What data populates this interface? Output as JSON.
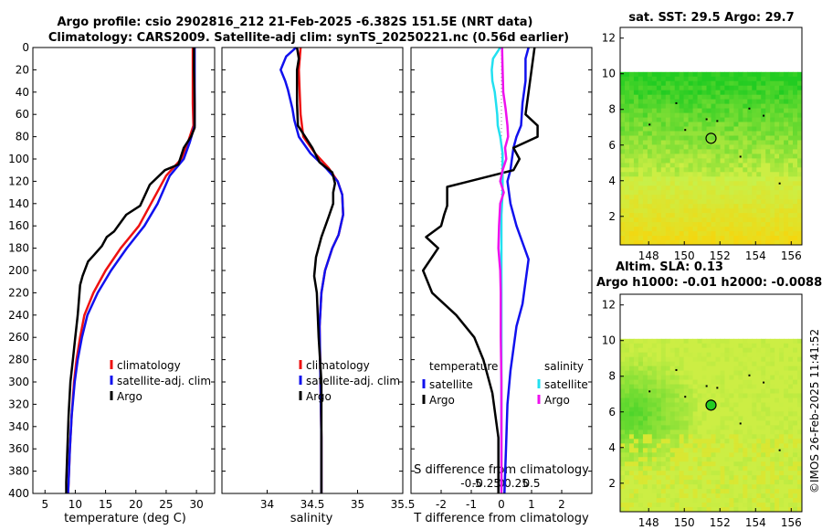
{
  "header": {
    "title_line1": "Argo profile: csio 2902816_212 21-Feb-2025 -6.382S 151.5E (NRT data)",
    "title_line2": "Climatology: CARS2009. Satellite-adj clim: synTS_20250221.nc (0.56d earlier)"
  },
  "timestamp": "©IMOS 26-Feb-2025 11:41:52",
  "colors": {
    "climatology": "#ee1111",
    "satellite": "#1111ee",
    "argo": "#000000",
    "sal_satellite": "#22e0f0",
    "sal_argo": "#ee11ee",
    "map_low": "#ccee44",
    "map_high": "#22cc22",
    "map_hot": "#ffd000"
  },
  "chart_data": [
    {
      "type": "line",
      "id": "temperature",
      "xlabel": "temperature (deg C)",
      "ylabel": "",
      "xlim": [
        3,
        33
      ],
      "ylim": [
        400,
        0
      ],
      "xticks": [
        5,
        10,
        15,
        20,
        25,
        30
      ],
      "yticks": [
        0,
        20,
        40,
        60,
        80,
        100,
        120,
        140,
        160,
        180,
        200,
        220,
        240,
        260,
        280,
        300,
        320,
        340,
        360,
        380,
        400
      ],
      "series": [
        {
          "name": "climatology",
          "color": "#ee1111",
          "points": [
            [
              29.4,
              0
            ],
            [
              29.4,
              20
            ],
            [
              29.4,
              50
            ],
            [
              29.5,
              70
            ],
            [
              28.6,
              85
            ],
            [
              27.5,
              100
            ],
            [
              25,
              115
            ],
            [
              22.5,
              140
            ],
            [
              20.5,
              160
            ],
            [
              17.5,
              180
            ],
            [
              15,
              200
            ],
            [
              13,
              220
            ],
            [
              11.5,
              240
            ],
            [
              10.8,
              260
            ],
            [
              10.2,
              280
            ],
            [
              9.8,
              300
            ],
            [
              9.4,
              330
            ],
            [
              9.1,
              360
            ],
            [
              8.9,
              390
            ],
            [
              8.8,
              400
            ]
          ]
        },
        {
          "name": "satellite-adj. clim",
          "color": "#1111ee",
          "points": [
            [
              29.7,
              0
            ],
            [
              29.7,
              20
            ],
            [
              29.7,
              50
            ],
            [
              29.7,
              70
            ],
            [
              28.9,
              85
            ],
            [
              27.9,
              100
            ],
            [
              25.6,
              115
            ],
            [
              23.6,
              140
            ],
            [
              21.4,
              160
            ],
            [
              18.5,
              180
            ],
            [
              15.9,
              200
            ],
            [
              13.7,
              220
            ],
            [
              12,
              240
            ],
            [
              11.1,
              260
            ],
            [
              10.4,
              280
            ],
            [
              9.9,
              300
            ],
            [
              9.4,
              330
            ],
            [
              9.1,
              360
            ],
            [
              8.9,
              390
            ],
            [
              8.8,
              400
            ]
          ]
        },
        {
          "name": "Argo",
          "color": "#000000",
          "points": [
            [
              29.6,
              0
            ],
            [
              29.6,
              20
            ],
            [
              29.7,
              50
            ],
            [
              29.7,
              72
            ],
            [
              29.1,
              80
            ],
            [
              27.9,
              90
            ],
            [
              27,
              105
            ],
            [
              24.8,
              110
            ],
            [
              22.3,
              123
            ],
            [
              20.7,
              142
            ],
            [
              18.4,
              150
            ],
            [
              16.4,
              165
            ],
            [
              15.2,
              170
            ],
            [
              14.4,
              178
            ],
            [
              13.1,
              186
            ],
            [
              12.1,
              192
            ],
            [
              11.2,
              205
            ],
            [
              10.8,
              213
            ],
            [
              10.4,
              240
            ],
            [
              10,
              260
            ],
            [
              9.6,
              280
            ],
            [
              9.2,
              300
            ],
            [
              8.9,
              330
            ],
            [
              8.7,
              360
            ],
            [
              8.5,
              390
            ],
            [
              8.5,
              400
            ]
          ]
        }
      ],
      "legend": [
        "climatology",
        "satellite-adj. clim",
        "Argo"
      ]
    },
    {
      "type": "line",
      "id": "salinity",
      "xlabel": "salinity",
      "xlim": [
        33.5,
        35.5
      ],
      "ylim": [
        400,
        0
      ],
      "xticks": [
        34,
        34.5,
        35,
        35.5
      ],
      "series": [
        {
          "name": "climatology",
          "color": "#ee1111",
          "points": [
            [
              34.37,
              0
            ],
            [
              34.35,
              20
            ],
            [
              34.36,
              40
            ],
            [
              34.37,
              60
            ],
            [
              34.4,
              80
            ],
            [
              34.53,
              95
            ],
            [
              34.68,
              108
            ],
            [
              34.78,
              120
            ],
            [
              34.83,
              132
            ],
            [
              34.84,
              150
            ],
            [
              34.79,
              168
            ],
            [
              34.72,
              180
            ],
            [
              34.64,
              200
            ],
            [
              34.6,
              220
            ],
            [
              34.58,
              250
            ],
            [
              34.59,
              300
            ],
            [
              34.6,
              350
            ],
            [
              34.6,
              400
            ]
          ]
        },
        {
          "name": "satellite-adj. clim",
          "color": "#1111ee",
          "points": [
            [
              34.32,
              0
            ],
            [
              34.21,
              8
            ],
            [
              34.15,
              20
            ],
            [
              34.2,
              30
            ],
            [
              34.23,
              38
            ],
            [
              34.28,
              55
            ],
            [
              34.3,
              65
            ],
            [
              34.35,
              80
            ],
            [
              34.48,
              95
            ],
            [
              34.65,
              108
            ],
            [
              34.78,
              120
            ],
            [
              34.83,
              132
            ],
            [
              34.84,
              150
            ],
            [
              34.79,
              168
            ],
            [
              34.72,
              180
            ],
            [
              34.64,
              200
            ],
            [
              34.6,
              220
            ],
            [
              34.58,
              250
            ],
            [
              34.59,
              300
            ],
            [
              34.6,
              350
            ],
            [
              34.6,
              400
            ]
          ]
        },
        {
          "name": "Argo",
          "color": "#000000",
          "points": [
            [
              34.33,
              0
            ],
            [
              34.35,
              10
            ],
            [
              34.33,
              20
            ],
            [
              34.33,
              50
            ],
            [
              34.34,
              70
            ],
            [
              34.42,
              80
            ],
            [
              34.5,
              90
            ],
            [
              34.58,
              103
            ],
            [
              34.72,
              112
            ],
            [
              34.75,
              122
            ],
            [
              34.73,
              130
            ],
            [
              34.73,
              140
            ],
            [
              34.68,
              152
            ],
            [
              34.6,
              170
            ],
            [
              34.54,
              188
            ],
            [
              34.52,
              205
            ],
            [
              34.55,
              220
            ],
            [
              34.57,
              260
            ],
            [
              34.6,
              300
            ],
            [
              34.6,
              340
            ],
            [
              34.6,
              400
            ]
          ]
        }
      ],
      "legend": [
        "climatology",
        "satellite-adj. clim",
        "Argo"
      ]
    },
    {
      "type": "line",
      "id": "difference",
      "xlabel": "T difference from climatology",
      "xlabel_top": "S difference from climatology",
      "xlim": [
        -3,
        3
      ],
      "ylim": [
        400,
        0
      ],
      "xticks_T": [
        -2,
        -1,
        0,
        1,
        2
      ],
      "xticks_S_labels": [
        "-0.5",
        "-0.25",
        "0",
        "0.25",
        "0.5"
      ],
      "xticks_S_values": [
        -0.5,
        -0.25,
        0,
        0.25,
        0.5
      ],
      "series": [
        {
          "name": "T satellite",
          "color": "#1111ee",
          "points": [
            [
              0.9,
              0
            ],
            [
              0.8,
              10
            ],
            [
              0.8,
              30
            ],
            [
              0.7,
              50
            ],
            [
              0.65,
              70
            ],
            [
              0.5,
              80
            ],
            [
              0.4,
              90
            ],
            [
              0.35,
              100
            ],
            [
              0.3,
              110
            ],
            [
              0.2,
              120
            ],
            [
              0.3,
              140
            ],
            [
              0.5,
              160
            ],
            [
              0.7,
              175
            ],
            [
              0.9,
              190
            ],
            [
              0.8,
              210
            ],
            [
              0.7,
              230
            ],
            [
              0.5,
              250
            ],
            [
              0.4,
              270
            ],
            [
              0.3,
              290
            ],
            [
              0.2,
              320
            ],
            [
              0.15,
              360
            ],
            [
              0.1,
              400
            ]
          ]
        },
        {
          "name": "T Argo",
          "color": "#000000",
          "points": [
            [
              1.1,
              0
            ],
            [
              1,
              20
            ],
            [
              0.9,
              40
            ],
            [
              0.8,
              60
            ],
            [
              1.2,
              70
            ],
            [
              1.2,
              80
            ],
            [
              0.4,
              90
            ],
            [
              0.6,
              100
            ],
            [
              0.4,
              110
            ],
            [
              -1.8,
              125
            ],
            [
              -1.8,
              142
            ],
            [
              -1.9,
              150
            ],
            [
              -2.0,
              160
            ],
            [
              -2.5,
              170
            ],
            [
              -2.1,
              180
            ],
            [
              -2.6,
              200
            ],
            [
              -2.3,
              220
            ],
            [
              -1.5,
              240
            ],
            [
              -0.9,
              260
            ],
            [
              -0.6,
              280
            ],
            [
              -0.3,
              310
            ],
            [
              -0.1,
              350
            ],
            [
              -0.1,
              400
            ]
          ]
        },
        {
          "name": "S satellite",
          "color": "#22e0f0",
          "points": [
            [
              -0.02,
              0
            ],
            [
              -0.14,
              10
            ],
            [
              -0.16,
              20
            ],
            [
              -0.15,
              30
            ],
            [
              -0.11,
              40
            ],
            [
              -0.09,
              50
            ],
            [
              -0.07,
              60
            ],
            [
              -0.06,
              70
            ],
            [
              -0.02,
              80
            ],
            [
              0.02,
              95
            ],
            [
              0.02,
              110
            ],
            [
              0.02,
              130
            ],
            [
              0,
              150
            ],
            [
              0,
              200
            ],
            [
              0,
              250
            ],
            [
              0,
              300
            ],
            [
              0,
              350
            ],
            [
              0,
              400
            ]
          ]
        },
        {
          "name": "S Argo",
          "color": "#ee11ee",
          "points": [
            [
              0.01,
              0
            ],
            [
              0.02,
              20
            ],
            [
              0.03,
              40
            ],
            [
              0.07,
              55
            ],
            [
              0.1,
              70
            ],
            [
              0.11,
              80
            ],
            [
              0.06,
              90
            ],
            [
              0.08,
              100
            ],
            [
              0.02,
              110
            ],
            [
              -0.02,
              120
            ],
            [
              0.04,
              130
            ],
            [
              -0.02,
              140
            ],
            [
              -0.04,
              160
            ],
            [
              -0.05,
              180
            ],
            [
              -0.02,
              200
            ],
            [
              -0.01,
              220
            ],
            [
              -0.01,
              260
            ],
            [
              0,
              300
            ],
            [
              0,
              350
            ],
            [
              0,
              400
            ]
          ]
        }
      ],
      "legend_T": {
        "title": "temperature",
        "items": [
          "satellite",
          "Argo"
        ]
      },
      "legend_S": {
        "title": "salinity",
        "items": [
          "satellite",
          "Argo"
        ]
      }
    }
  ],
  "maps": [
    {
      "id": "sst",
      "title": "sat. SST: 29.5 Argo: 29.7",
      "xticks": [
        "148",
        "150",
        "152",
        "154",
        "156"
      ],
      "xtick_values": [
        148,
        150,
        152,
        154,
        156
      ],
      "yticks": [
        "2",
        "4",
        "6",
        "8",
        "10",
        "12"
      ],
      "ytick_values": [
        2,
        4,
        6,
        8,
        10,
        12
      ],
      "xlim": [
        146.4,
        156.6
      ],
      "ylim": [
        0.4,
        12.6
      ],
      "data_top_lat": 10.1,
      "argo_lon": 151.5,
      "argo_lat": 6.38
    },
    {
      "id": "sla",
      "title_line1": "Altim. SLA: 0.13",
      "title_line2": "Argo h1000: -0.01 h2000: -0.0088",
      "xticks": [
        "148",
        "150",
        "152",
        "154",
        "156"
      ],
      "xtick_values": [
        148,
        150,
        152,
        154,
        156
      ],
      "yticks": [
        "2",
        "4",
        "6",
        "8",
        "10",
        "12"
      ],
      "ytick_values": [
        2,
        4,
        6,
        8,
        10,
        12
      ],
      "xlim": [
        146.4,
        156.6
      ],
      "ylim": [
        0.4,
        12.6
      ],
      "data_top_lat": 10.1,
      "argo_lon": 151.5,
      "argo_lat": 6.38
    }
  ]
}
